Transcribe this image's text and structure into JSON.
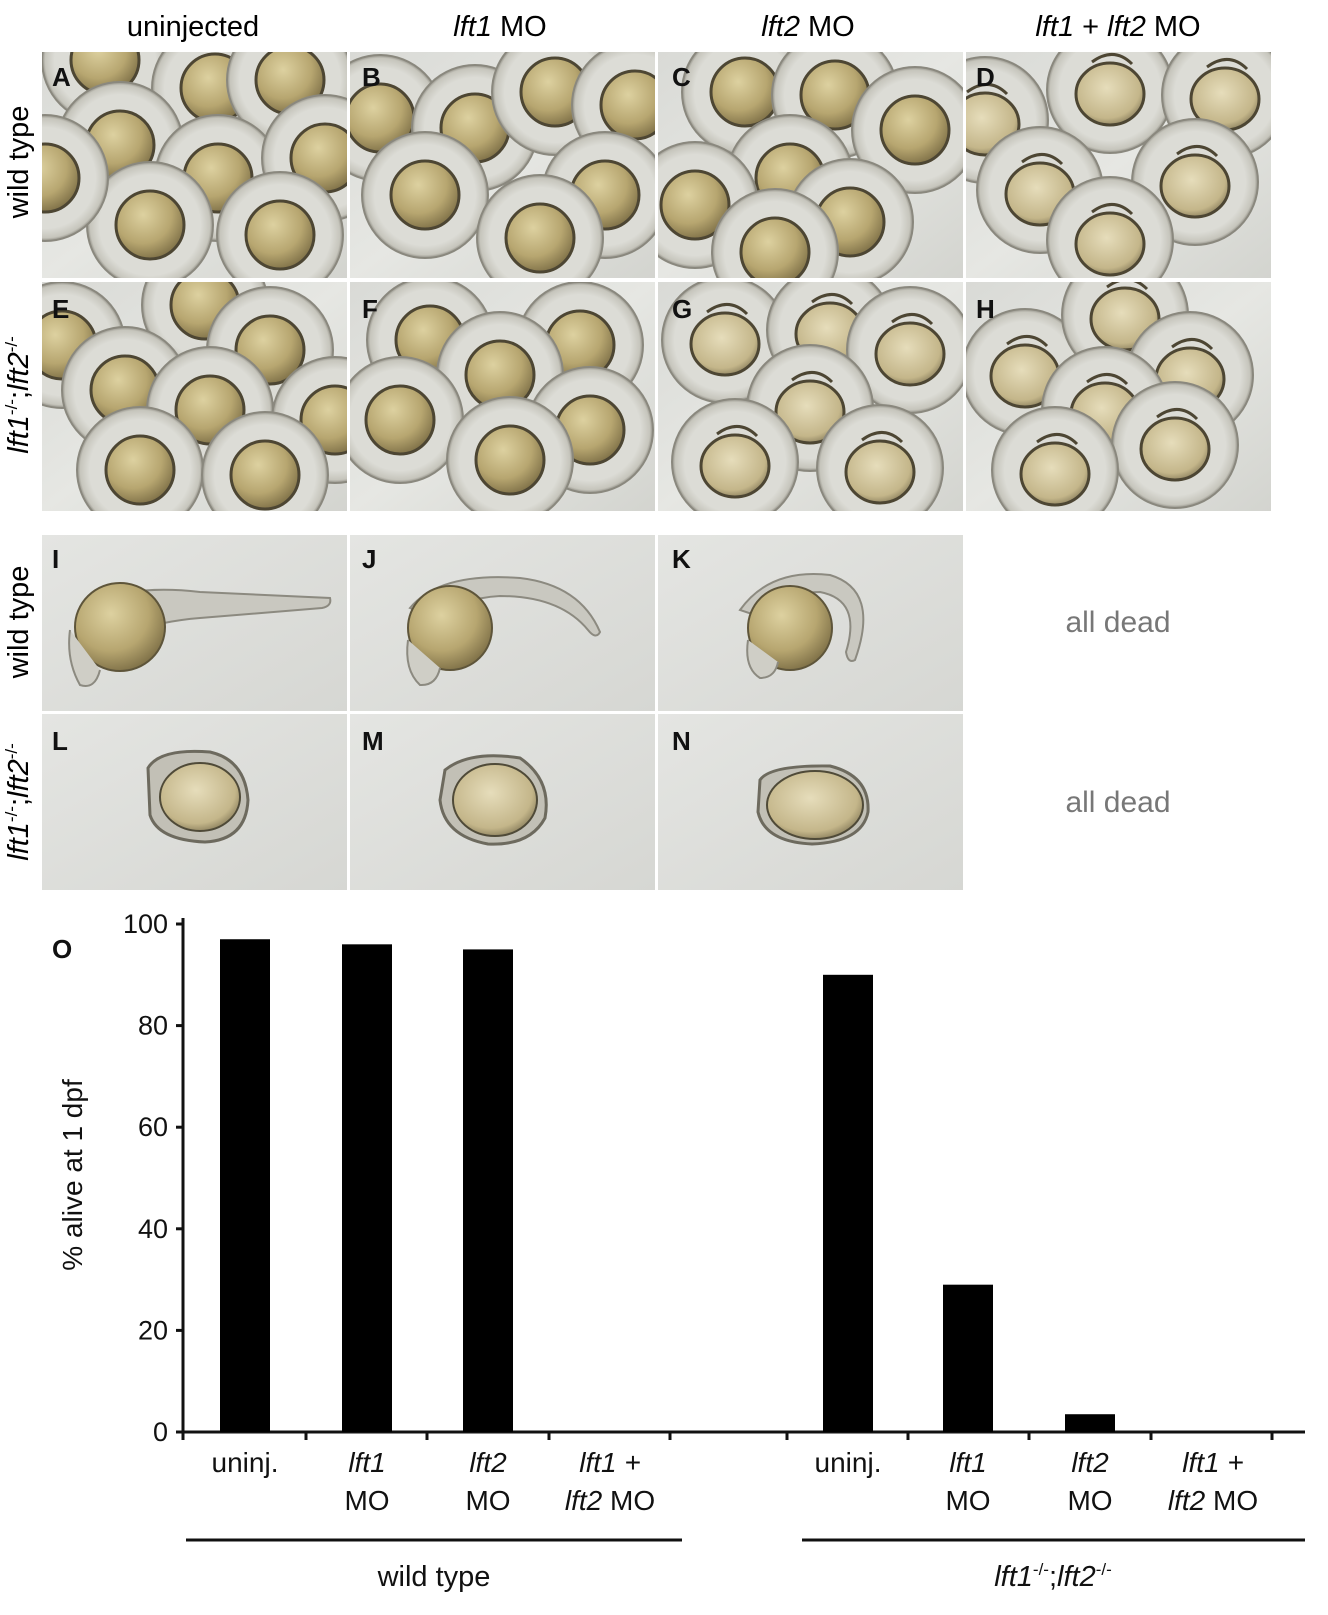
{
  "columns": {
    "c0": {
      "label": "uninjected"
    },
    "c1": {
      "gene": "lft1",
      "suffix": " MO"
    },
    "c2": {
      "gene": "lft2",
      "suffix": " MO"
    },
    "c3": {
      "gene_a": "lft1",
      "plus": " + ",
      "gene_b": "lft2",
      "suffix": " MO"
    }
  },
  "rows": {
    "wild_type": "wild type",
    "mutant": {
      "g1": "lft1",
      "sup1": "-/-",
      "sep": ";",
      "g2": "lft2",
      "sup2": "-/-"
    }
  },
  "panels": {
    "A": "A",
    "B": "B",
    "C": "C",
    "D": "D",
    "E": "E",
    "F": "F",
    "G": "G",
    "H": "H",
    "I": "I",
    "J": "J",
    "K": "K",
    "L": "L",
    "M": "M",
    "N": "N"
  },
  "all_dead": "all dead",
  "chart_panel_letter": "O",
  "chart_data": {
    "type": "bar",
    "ylabel": "% alive at 1 dpf",
    "ylim": [
      0,
      100
    ],
    "yticks": [
      "0",
      "20",
      "40",
      "60",
      "80",
      "100"
    ],
    "categories": [
      {
        "line1": "uninj.",
        "line1_italic": false,
        "line2": ""
      },
      {
        "line1": "lft1",
        "line1_italic": true,
        "line2": "MO"
      },
      {
        "line1": "lft2",
        "line1_italic": true,
        "line2": "MO"
      },
      {
        "line1": "lft1 +",
        "line1_italic": true,
        "line2_gene": "lft2",
        "line2": " MO"
      },
      {
        "line1": "uninj.",
        "line1_italic": false,
        "line2": ""
      },
      {
        "line1": "lft1",
        "line1_italic": true,
        "line2": "MO"
      },
      {
        "line1": "lft2",
        "line1_italic": true,
        "line2": "MO"
      },
      {
        "line1": "lft1 +",
        "line1_italic": true,
        "line2_gene": "lft2",
        "line2": " MO"
      }
    ],
    "values": [
      97,
      96,
      95,
      0,
      90,
      29,
      3.5,
      0
    ],
    "groups": [
      {
        "label": "wild type"
      },
      {
        "g1": "lft1",
        "sup1": "-/-",
        "sep": ";",
        "g2": "lft2",
        "sup2": "-/-"
      }
    ]
  }
}
